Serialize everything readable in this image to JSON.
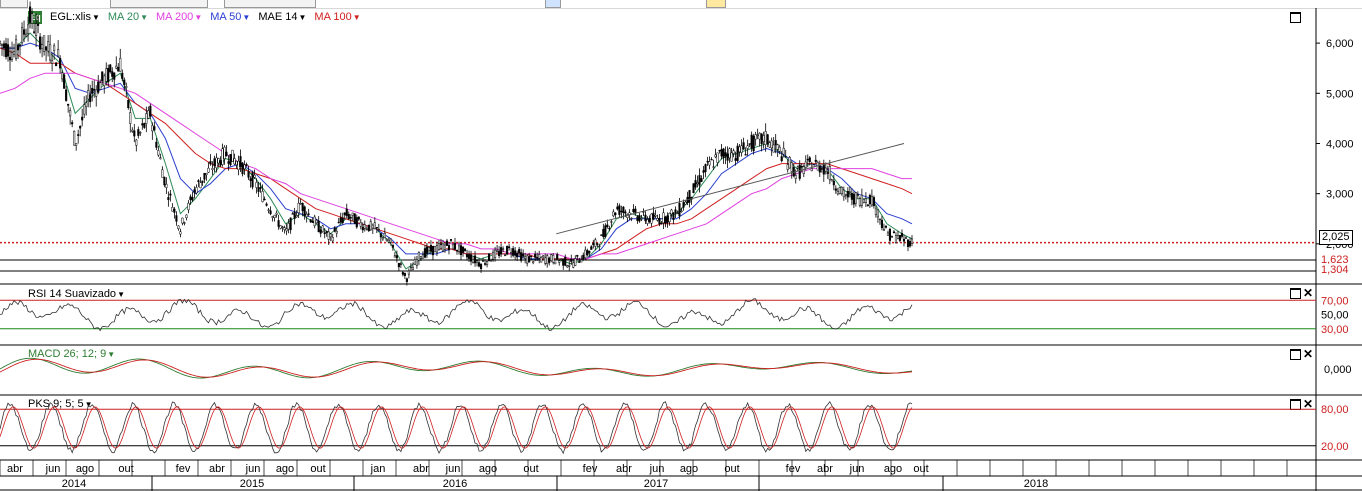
{
  "legend": {
    "symbol_badge": "Eq",
    "items": [
      {
        "label": "EGL:xlis",
        "color": "#000000"
      },
      {
        "label": "MA 20",
        "color": "#2e8b57"
      },
      {
        "label": "MA 200",
        "color": "#e040e0"
      },
      {
        "label": "MA 50",
        "color": "#2a3fd0"
      },
      {
        "label": "MAE 14",
        "color": "#000000"
      },
      {
        "label": "MA 100",
        "color": "#d02020"
      }
    ]
  },
  "panels": {
    "rsi": {
      "title": "RSI 14 Suavizado",
      "levels": [
        "70,00",
        "50,00",
        "30,00"
      ]
    },
    "macd": {
      "title": "MACD 26; 12; 9",
      "levels": [
        "0,000"
      ]
    },
    "pks": {
      "title": "PKS 9; 5; 5",
      "levels": [
        "80,00",
        "20,00"
      ]
    }
  },
  "price_labels": {
    "last": "2,025",
    "support1": "1,623",
    "support2": "1,304"
  },
  "colors": {
    "up": "#000000",
    "down": "#000000",
    "ma20": "#2e8b57",
    "ma200": "#e040e0",
    "ma50": "#2a3fd0",
    "ma100": "#d02020",
    "level": "#cc2020",
    "rsi30": "#1a8a1a"
  },
  "chart_data": {
    "type": "line",
    "title": "EGL:xlis",
    "yaxis_ticks": [
      "6,000",
      "5,000",
      "4,000",
      "3,000",
      "2,000"
    ],
    "ylim": [
      1.2,
      6.7
    ],
    "months": [
      "abr",
      "jun",
      "ago",
      "out",
      "fev",
      "abr",
      "jun",
      "ago",
      "out",
      "jan",
      "abr",
      "jun",
      "ago",
      "out",
      "fev",
      "abr",
      "jun",
      "ago",
      "out",
      "fev",
      "abr",
      "jun",
      "ago",
      "out"
    ],
    "years": [
      "2014",
      "2015",
      "2016",
      "2017",
      "2018"
    ],
    "series": [
      {
        "name": "EGL:xlis",
        "x": [
          0,
          15,
          30,
          45,
          60,
          75,
          90,
          105,
          120,
          135,
          150,
          165,
          180,
          195,
          210,
          225,
          240,
          255,
          270,
          285,
          300,
          315,
          330,
          345,
          360,
          375,
          390,
          405,
          420,
          435,
          450,
          465,
          480,
          495,
          510,
          525,
          540,
          555,
          570,
          585,
          600,
          615,
          630,
          645,
          660,
          675,
          690,
          705,
          720,
          735,
          750,
          765,
          780,
          795,
          810,
          825,
          840,
          855,
          870,
          885,
          900,
          910
        ],
        "values": [
          6.0,
          5.8,
          6.5,
          5.9,
          5.7,
          4.0,
          5.0,
          5.3,
          5.6,
          4.0,
          4.6,
          3.2,
          2.3,
          3.1,
          3.5,
          3.8,
          3.6,
          3.2,
          2.7,
          2.2,
          2.8,
          2.4,
          2.1,
          2.6,
          2.4,
          2.3,
          2.0,
          1.3,
          1.8,
          1.9,
          2.0,
          1.8,
          1.6,
          1.8,
          1.9,
          1.7,
          1.7,
          1.7,
          1.6,
          1.8,
          2.1,
          2.7,
          2.6,
          2.5,
          2.5,
          2.6,
          3.0,
          3.5,
          3.8,
          3.8,
          4.0,
          4.1,
          3.8,
          3.4,
          3.6,
          3.5,
          3.0,
          2.9,
          2.9,
          2.2,
          2.1,
          2.025
        ]
      },
      {
        "name": "MA 20",
        "values": [
          5.9,
          5.9,
          6.2,
          5.9,
          5.6,
          4.6,
          4.9,
          5.2,
          5.4,
          4.5,
          4.5,
          3.6,
          2.6,
          2.9,
          3.3,
          3.7,
          3.6,
          3.3,
          2.9,
          2.4,
          2.6,
          2.4,
          2.2,
          2.5,
          2.4,
          2.3,
          2.0,
          1.5,
          1.7,
          1.9,
          1.9,
          1.8,
          1.7,
          1.8,
          1.8,
          1.7,
          1.7,
          1.7,
          1.6,
          1.7,
          2.0,
          2.5,
          2.6,
          2.5,
          2.5,
          2.6,
          2.9,
          3.3,
          3.7,
          3.8,
          3.9,
          4.0,
          3.8,
          3.5,
          3.6,
          3.5,
          3.1,
          2.9,
          2.9,
          2.4,
          2.2,
          2.1
        ]
      },
      {
        "name": "MA 50",
        "values": [
          5.9,
          5.9,
          6.0,
          5.9,
          5.7,
          5.1,
          5.0,
          5.1,
          5.2,
          4.8,
          4.6,
          4.1,
          3.3,
          3.0,
          3.2,
          3.5,
          3.6,
          3.4,
          3.1,
          2.7,
          2.6,
          2.5,
          2.3,
          2.4,
          2.4,
          2.3,
          2.1,
          1.8,
          1.8,
          1.8,
          1.9,
          1.8,
          1.8,
          1.8,
          1.8,
          1.7,
          1.7,
          1.7,
          1.7,
          1.7,
          1.9,
          2.3,
          2.5,
          2.5,
          2.5,
          2.5,
          2.7,
          3.0,
          3.4,
          3.6,
          3.8,
          3.9,
          3.8,
          3.6,
          3.6,
          3.5,
          3.3,
          3.0,
          2.9,
          2.6,
          2.5,
          2.4
        ]
      },
      {
        "name": "MA 100",
        "values": [
          5.9,
          5.8,
          5.6,
          5.6,
          5.6,
          5.4,
          5.3,
          5.2,
          5.0,
          4.8,
          4.6,
          4.4,
          4.1,
          3.8,
          3.6,
          3.5,
          3.5,
          3.4,
          3.3,
          3.1,
          2.9,
          2.7,
          2.6,
          2.5,
          2.4,
          2.3,
          2.2,
          2.1,
          2.0,
          1.9,
          1.9,
          1.8,
          1.8,
          1.8,
          1.8,
          1.8,
          1.7,
          1.7,
          1.7,
          1.7,
          1.8,
          1.9,
          2.1,
          2.3,
          2.4,
          2.4,
          2.5,
          2.7,
          2.9,
          3.1,
          3.3,
          3.5,
          3.6,
          3.6,
          3.6,
          3.6,
          3.5,
          3.4,
          3.3,
          3.2,
          3.1,
          3.0
        ]
      },
      {
        "name": "MA 200",
        "values": [
          5.0,
          5.1,
          5.3,
          5.4,
          5.4,
          5.4,
          5.3,
          5.2,
          5.1,
          5.0,
          4.8,
          4.6,
          4.4,
          4.2,
          4.0,
          3.8,
          3.6,
          3.5,
          3.3,
          3.2,
          3.0,
          2.9,
          2.8,
          2.7,
          2.6,
          2.5,
          2.4,
          2.3,
          2.2,
          2.1,
          2.0,
          2.0,
          1.9,
          1.9,
          1.8,
          1.8,
          1.8,
          1.8,
          1.7,
          1.7,
          1.8,
          1.8,
          1.9,
          2.0,
          2.1,
          2.2,
          2.3,
          2.4,
          2.6,
          2.8,
          3.0,
          3.1,
          3.3,
          3.4,
          3.5,
          3.5,
          3.5,
          3.5,
          3.5,
          3.4,
          3.3,
          3.3
        ]
      }
    ]
  }
}
